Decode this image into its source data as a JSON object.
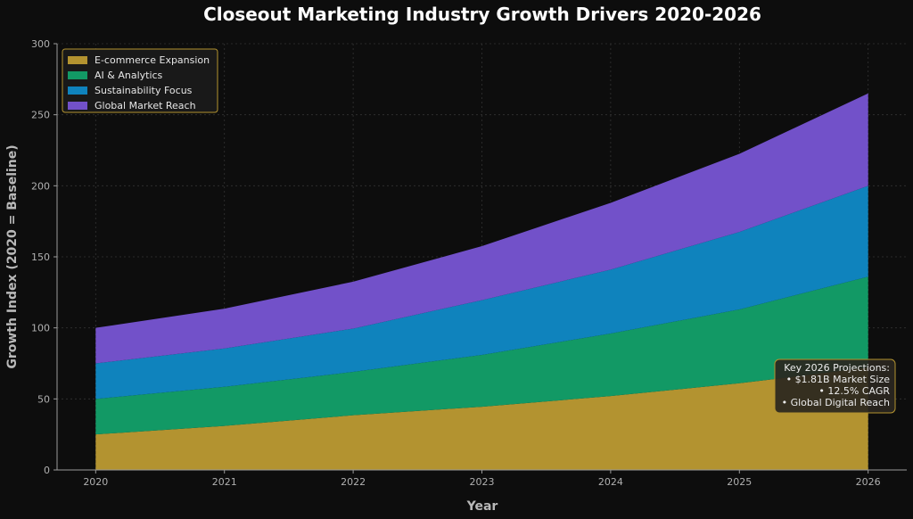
{
  "chart_data": {
    "type": "area",
    "stacked": true,
    "title": "Closeout Marketing Industry Growth Drivers 2020-2026",
    "xlabel": "Year",
    "ylabel": "Growth Index (2020 = Baseline)",
    "x": [
      "2020",
      "2021",
      "2022",
      "2023",
      "2024",
      "2025",
      "2026"
    ],
    "xlim": [
      2019.7,
      2026.3
    ],
    "ylim": [
      0,
      300
    ],
    "yticks": [
      0,
      50,
      100,
      150,
      200,
      250,
      300
    ],
    "grid": true,
    "legend_position": "top-left",
    "series": [
      {
        "name": "E-commerce Expansion",
        "color": "#b39330",
        "values": [
          25,
          31,
          38.5,
          44.5,
          52,
          61,
          72
        ]
      },
      {
        "name": "AI & Analytics",
        "color": "#129965",
        "values": [
          25,
          27.5,
          30.5,
          36.5,
          44,
          52,
          64
        ]
      },
      {
        "name": "Sustainability Focus",
        "color": "#0f83bd",
        "values": [
          25,
          27,
          30.5,
          38.5,
          45,
          54.5,
          64
        ]
      },
      {
        "name": "Global Market Reach",
        "color": "#7251c9",
        "values": [
          25,
          28,
          33,
          38,
          47,
          55,
          65
        ]
      }
    ],
    "annotation": {
      "lines": [
        "Key 2026 Projections:",
        "• $1.81B Market Size",
        "• 12.5% CAGR",
        "• Global Digital Reach"
      ],
      "border_color": "#b39330",
      "background": "#2a2620"
    }
  },
  "colors": {
    "background": "#0d0d0d",
    "axis": "#9a9a9a",
    "grid": "#333333",
    "legend_border": "#b39330",
    "legend_bg": "#1a1a1a"
  }
}
